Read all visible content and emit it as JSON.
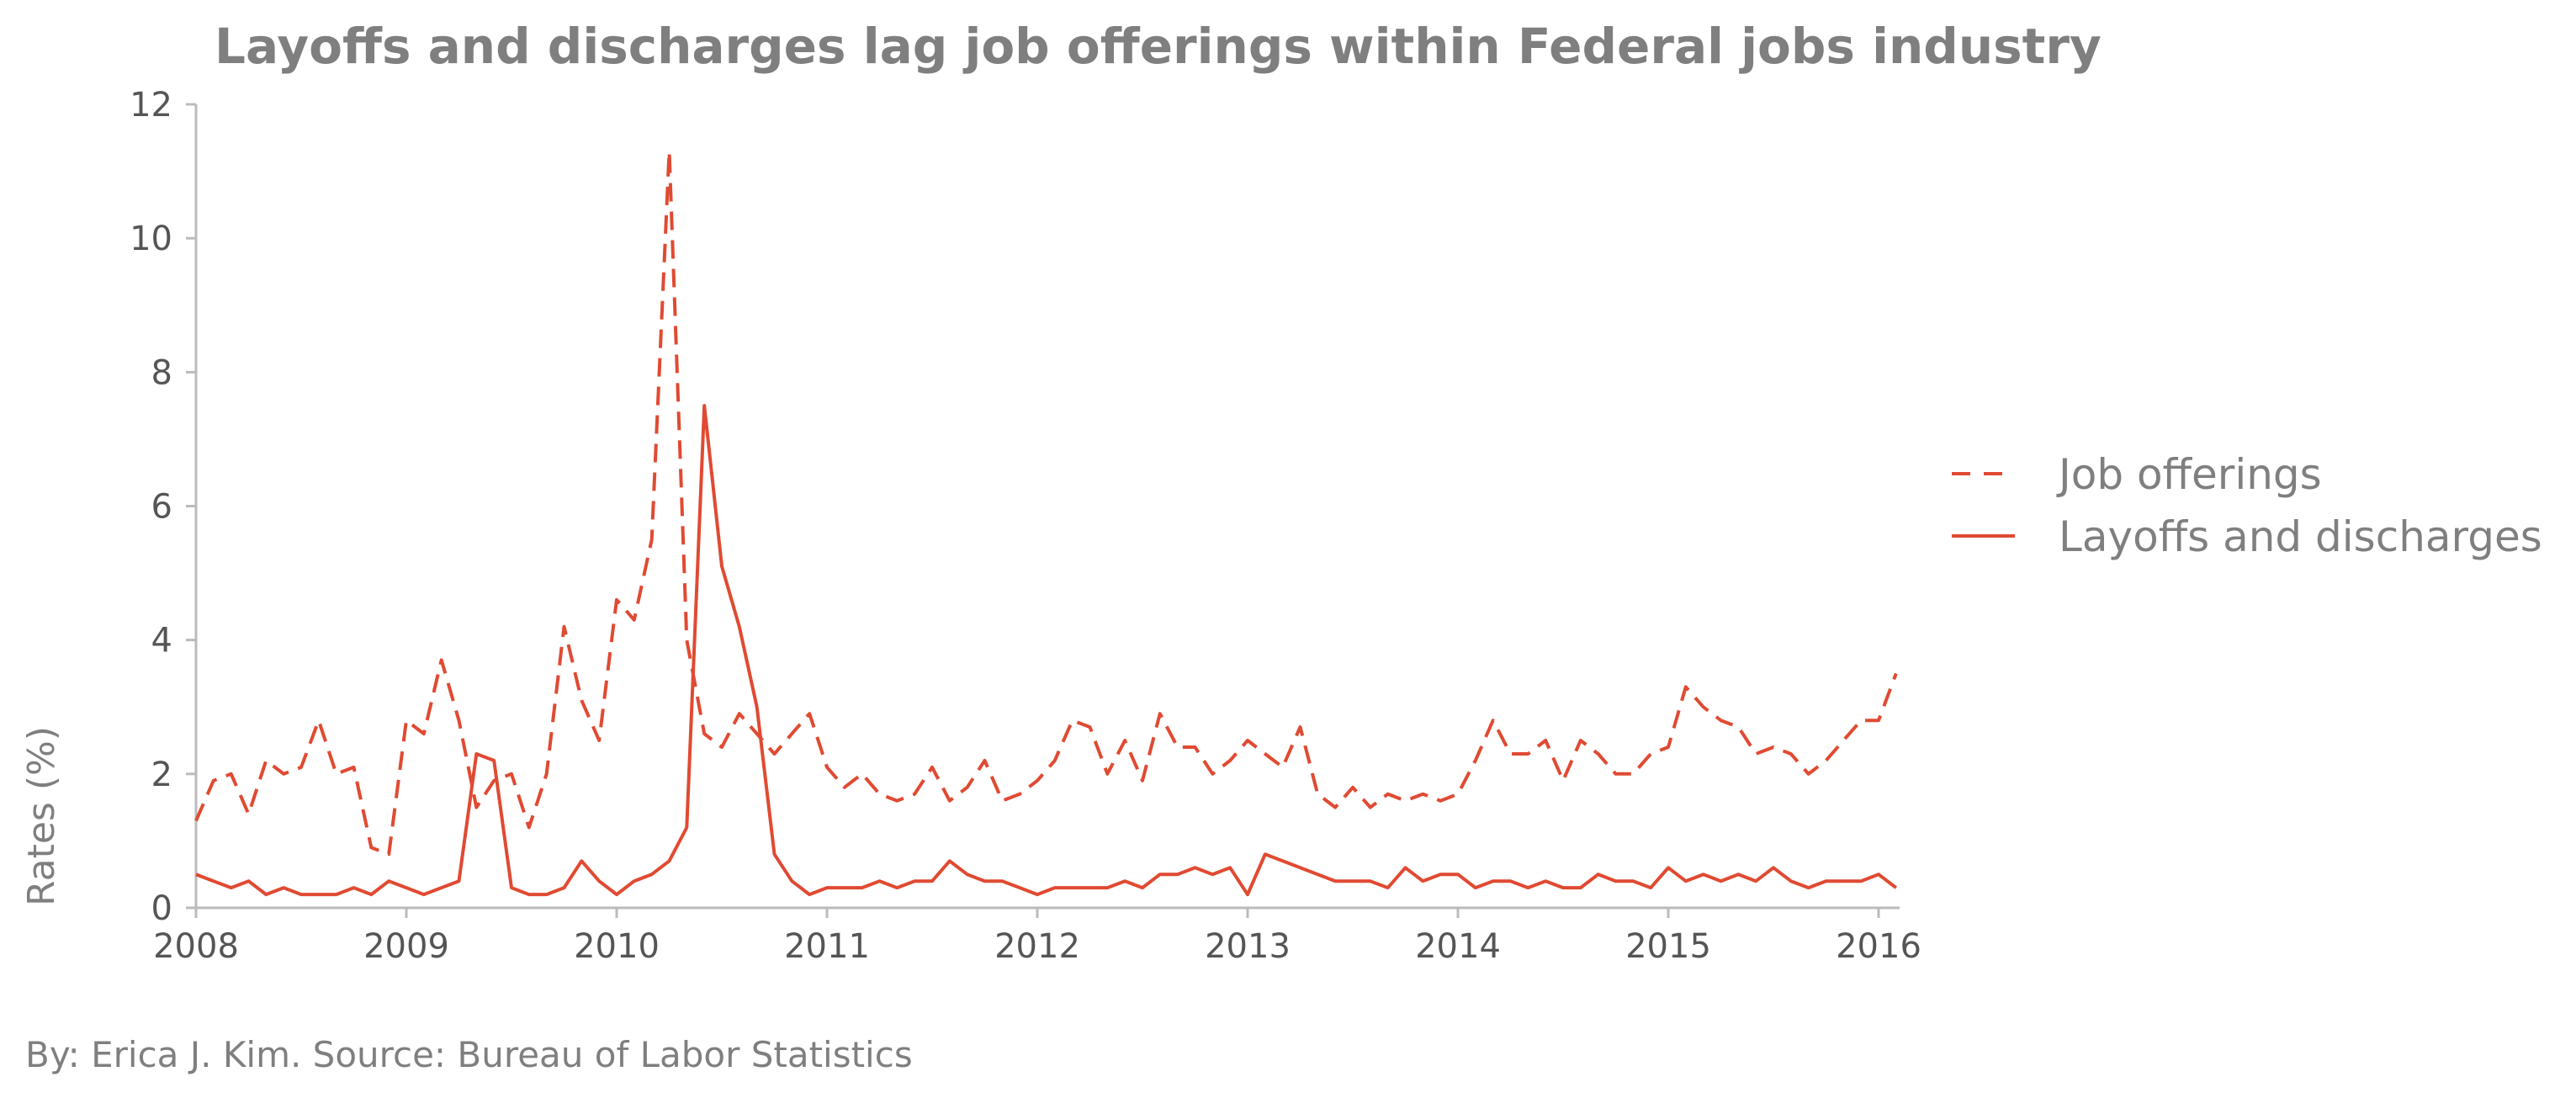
{
  "chart_data": {
    "type": "line",
    "title": "Layoffs and discharges lag job offerings within Federal jobs industry",
    "xlabel": "",
    "ylabel": "Rates (%)",
    "xlim": [
      "2008-01",
      "2016-02"
    ],
    "ylim": [
      0,
      12
    ],
    "x_ticks": [
      "2008",
      "2009",
      "2010",
      "2011",
      "2012",
      "2013",
      "2014",
      "2015",
      "2016"
    ],
    "y_ticks": [
      0,
      2,
      4,
      6,
      8,
      10,
      12
    ],
    "grid": false,
    "legend_position": "right",
    "series": [
      {
        "name": "Job offerings",
        "style": "dashed",
        "color": "#e04a32",
        "points": [
          [
            "2008-01",
            1.3
          ],
          [
            "2008-02",
            1.9
          ],
          [
            "2008-03",
            2.0
          ],
          [
            "2008-04",
            1.4
          ],
          [
            "2008-05",
            2.2
          ],
          [
            "2008-06",
            2.0
          ],
          [
            "2008-07",
            2.1
          ],
          [
            "2008-08",
            2.8
          ],
          [
            "2008-09",
            2.0
          ],
          [
            "2008-10",
            2.1
          ],
          [
            "2008-11",
            0.9
          ],
          [
            "2008-12",
            0.8
          ],
          [
            "2009-01",
            2.8
          ],
          [
            "2009-02",
            2.6
          ],
          [
            "2009-03",
            3.7
          ],
          [
            "2009-04",
            2.8
          ],
          [
            "2009-05",
            1.5
          ],
          [
            "2009-06",
            1.9
          ],
          [
            "2009-07",
            2.0
          ],
          [
            "2009-08",
            1.2
          ],
          [
            "2009-09",
            2.0
          ],
          [
            "2009-10",
            4.2
          ],
          [
            "2009-11",
            3.1
          ],
          [
            "2009-12",
            2.5
          ],
          [
            "2010-01",
            4.6
          ],
          [
            "2010-02",
            4.3
          ],
          [
            "2010-03",
            5.5
          ],
          [
            "2010-04",
            11.3
          ],
          [
            "2010-05",
            4.0
          ],
          [
            "2010-06",
            2.6
          ],
          [
            "2010-07",
            2.4
          ],
          [
            "2010-08",
            2.9
          ],
          [
            "2010-09",
            2.6
          ],
          [
            "2010-10",
            2.3
          ],
          [
            "2010-11",
            2.6
          ],
          [
            "2010-12",
            2.9
          ],
          [
            "2011-01",
            2.1
          ],
          [
            "2011-02",
            1.8
          ],
          [
            "2011-03",
            2.0
          ],
          [
            "2011-04",
            1.7
          ],
          [
            "2011-05",
            1.6
          ],
          [
            "2011-06",
            1.7
          ],
          [
            "2011-07",
            2.1
          ],
          [
            "2011-08",
            1.6
          ],
          [
            "2011-09",
            1.8
          ],
          [
            "2011-10",
            2.2
          ],
          [
            "2011-11",
            1.6
          ],
          [
            "2011-12",
            1.7
          ],
          [
            "2012-01",
            1.9
          ],
          [
            "2012-02",
            2.2
          ],
          [
            "2012-03",
            2.8
          ],
          [
            "2012-04",
            2.7
          ],
          [
            "2012-05",
            2.0
          ],
          [
            "2012-06",
            2.5
          ],
          [
            "2012-07",
            1.9
          ],
          [
            "2012-08",
            2.9
          ],
          [
            "2012-09",
            2.4
          ],
          [
            "2012-10",
            2.4
          ],
          [
            "2012-11",
            2.0
          ],
          [
            "2012-12",
            2.2
          ],
          [
            "2013-01",
            2.5
          ],
          [
            "2013-02",
            2.3
          ],
          [
            "2013-03",
            2.1
          ],
          [
            "2013-04",
            2.7
          ],
          [
            "2013-05",
            1.7
          ],
          [
            "2013-06",
            1.5
          ],
          [
            "2013-07",
            1.8
          ],
          [
            "2013-08",
            1.5
          ],
          [
            "2013-09",
            1.7
          ],
          [
            "2013-10",
            1.6
          ],
          [
            "2013-11",
            1.7
          ],
          [
            "2013-12",
            1.6
          ],
          [
            "2014-01",
            1.7
          ],
          [
            "2014-02",
            2.2
          ],
          [
            "2014-03",
            2.8
          ],
          [
            "2014-04",
            2.3
          ],
          [
            "2014-05",
            2.3
          ],
          [
            "2014-06",
            2.5
          ],
          [
            "2014-07",
            1.9
          ],
          [
            "2014-08",
            2.5
          ],
          [
            "2014-09",
            2.3
          ],
          [
            "2014-10",
            2.0
          ],
          [
            "2014-11",
            2.0
          ],
          [
            "2014-12",
            2.3
          ],
          [
            "2015-01",
            2.4
          ],
          [
            "2015-02",
            3.3
          ],
          [
            "2015-03",
            3.0
          ],
          [
            "2015-04",
            2.8
          ],
          [
            "2015-05",
            2.7
          ],
          [
            "2015-06",
            2.3
          ],
          [
            "2015-07",
            2.4
          ],
          [
            "2015-08",
            2.3
          ],
          [
            "2015-09",
            2.0
          ],
          [
            "2015-10",
            2.2
          ],
          [
            "2015-11",
            2.5
          ],
          [
            "2015-12",
            2.8
          ],
          [
            "2016-01",
            2.8
          ],
          [
            "2016-02",
            3.5
          ]
        ]
      },
      {
        "name": "Layoffs and discharges",
        "style": "solid",
        "color": "#e04a32",
        "points": [
          [
            "2008-01",
            0.5
          ],
          [
            "2008-02",
            0.4
          ],
          [
            "2008-03",
            0.3
          ],
          [
            "2008-04",
            0.4
          ],
          [
            "2008-05",
            0.2
          ],
          [
            "2008-06",
            0.3
          ],
          [
            "2008-07",
            0.2
          ],
          [
            "2008-08",
            0.2
          ],
          [
            "2008-09",
            0.2
          ],
          [
            "2008-10",
            0.3
          ],
          [
            "2008-11",
            0.2
          ],
          [
            "2008-12",
            0.4
          ],
          [
            "2009-01",
            0.3
          ],
          [
            "2009-02",
            0.2
          ],
          [
            "2009-03",
            0.3
          ],
          [
            "2009-04",
            0.4
          ],
          [
            "2009-05",
            2.3
          ],
          [
            "2009-06",
            2.2
          ],
          [
            "2009-07",
            0.3
          ],
          [
            "2009-08",
            0.2
          ],
          [
            "2009-09",
            0.2
          ],
          [
            "2009-10",
            0.3
          ],
          [
            "2009-11",
            0.7
          ],
          [
            "2009-12",
            0.4
          ],
          [
            "2010-01",
            0.2
          ],
          [
            "2010-02",
            0.4
          ],
          [
            "2010-03",
            0.5
          ],
          [
            "2010-04",
            0.7
          ],
          [
            "2010-05",
            1.2
          ],
          [
            "2010-06",
            7.5
          ],
          [
            "2010-07",
            5.1
          ],
          [
            "2010-08",
            4.2
          ],
          [
            "2010-09",
            3.0
          ],
          [
            "2010-10",
            0.8
          ],
          [
            "2010-11",
            0.4
          ],
          [
            "2010-12",
            0.2
          ],
          [
            "2011-01",
            0.3
          ],
          [
            "2011-02",
            0.3
          ],
          [
            "2011-03",
            0.3
          ],
          [
            "2011-04",
            0.4
          ],
          [
            "2011-05",
            0.3
          ],
          [
            "2011-06",
            0.4
          ],
          [
            "2011-07",
            0.4
          ],
          [
            "2011-08",
            0.7
          ],
          [
            "2011-09",
            0.5
          ],
          [
            "2011-10",
            0.4
          ],
          [
            "2011-11",
            0.4
          ],
          [
            "2011-12",
            0.3
          ],
          [
            "2012-01",
            0.2
          ],
          [
            "2012-02",
            0.3
          ],
          [
            "2012-03",
            0.3
          ],
          [
            "2012-04",
            0.3
          ],
          [
            "2012-05",
            0.3
          ],
          [
            "2012-06",
            0.4
          ],
          [
            "2012-07",
            0.3
          ],
          [
            "2012-08",
            0.5
          ],
          [
            "2012-09",
            0.5
          ],
          [
            "2012-10",
            0.6
          ],
          [
            "2012-11",
            0.5
          ],
          [
            "2012-12",
            0.6
          ],
          [
            "2013-01",
            0.2
          ],
          [
            "2013-02",
            0.8
          ],
          [
            "2013-03",
            0.7
          ],
          [
            "2013-04",
            0.6
          ],
          [
            "2013-05",
            0.5
          ],
          [
            "2013-06",
            0.4
          ],
          [
            "2013-07",
            0.4
          ],
          [
            "2013-08",
            0.4
          ],
          [
            "2013-09",
            0.3
          ],
          [
            "2013-10",
            0.6
          ],
          [
            "2013-11",
            0.4
          ],
          [
            "2013-12",
            0.5
          ],
          [
            "2014-01",
            0.5
          ],
          [
            "2014-02",
            0.3
          ],
          [
            "2014-03",
            0.4
          ],
          [
            "2014-04",
            0.4
          ],
          [
            "2014-05",
            0.3
          ],
          [
            "2014-06",
            0.4
          ],
          [
            "2014-07",
            0.3
          ],
          [
            "2014-08",
            0.3
          ],
          [
            "2014-09",
            0.5
          ],
          [
            "2014-10",
            0.4
          ],
          [
            "2014-11",
            0.4
          ],
          [
            "2014-12",
            0.3
          ],
          [
            "2015-01",
            0.6
          ],
          [
            "2015-02",
            0.4
          ],
          [
            "2015-03",
            0.5
          ],
          [
            "2015-04",
            0.4
          ],
          [
            "2015-05",
            0.5
          ],
          [
            "2015-06",
            0.4
          ],
          [
            "2015-07",
            0.6
          ],
          [
            "2015-08",
            0.4
          ],
          [
            "2015-09",
            0.3
          ],
          [
            "2015-10",
            0.4
          ],
          [
            "2015-11",
            0.4
          ],
          [
            "2015-12",
            0.4
          ],
          [
            "2016-01",
            0.5
          ],
          [
            "2016-02",
            0.3
          ]
        ]
      }
    ]
  },
  "credit": "By: Erica J. Kim. Source: Bureau of Labor Statistics",
  "colors": {
    "series": "#e04a32",
    "axis": "#bbbbbb",
    "text": "#7f7f7f",
    "tick_text": "#555555"
  }
}
